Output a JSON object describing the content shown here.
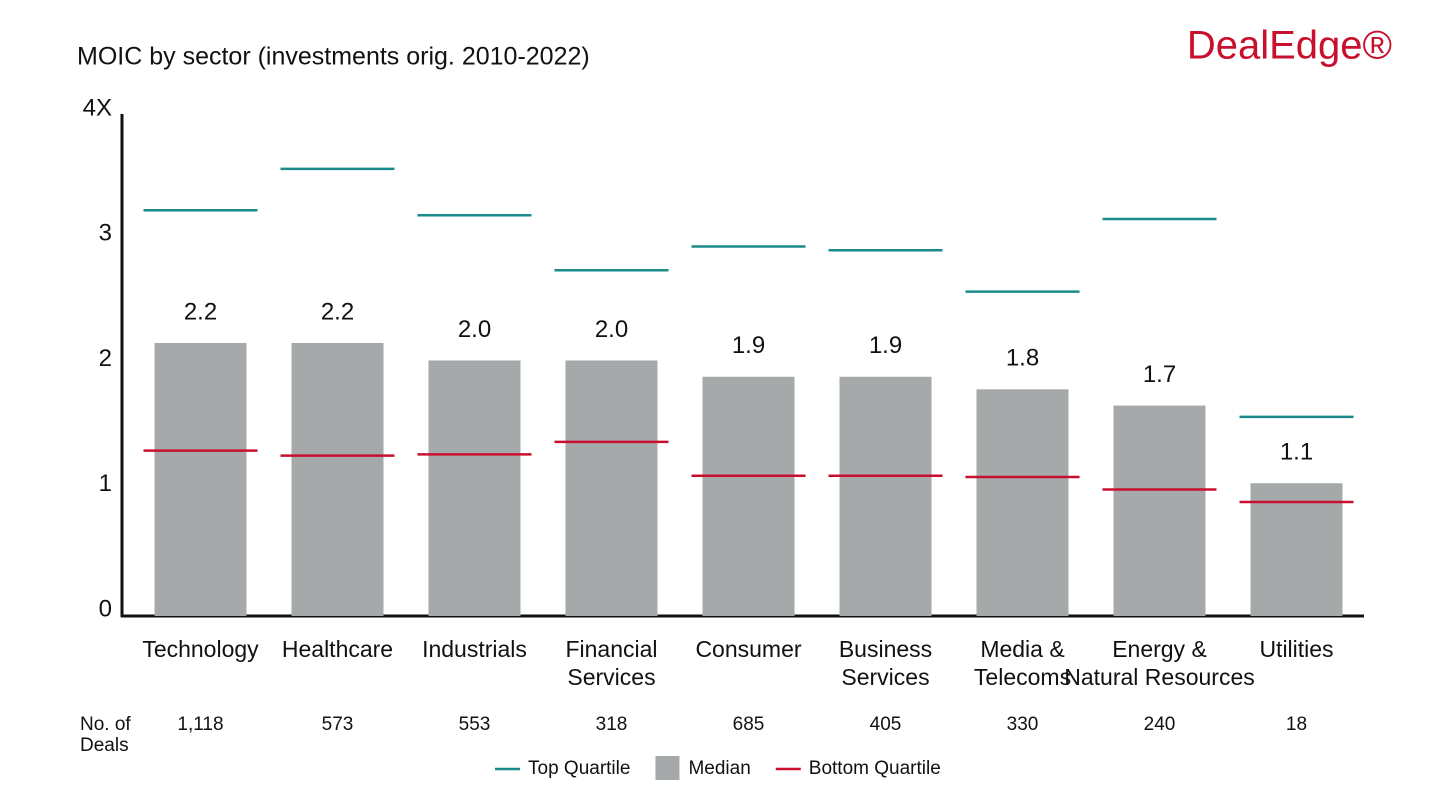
{
  "chart_data": {
    "type": "bar",
    "title": "MOIC by sector (investments orig. 2010-2022)",
    "brand": "DealEdge®",
    "categories": [
      "Technology",
      "Healthcare",
      "Industrials",
      "Financial\nServices",
      "Consumer",
      "Business\nServices",
      "Media &\nTelecoms",
      "Energy &\nNatural Resources",
      "Utilities"
    ],
    "series": [
      {
        "name": "Top Quartile",
        "color": "#1a8a8a",
        "mark": "line",
        "values": [
          3.24,
          3.57,
          3.2,
          2.76,
          2.95,
          2.92,
          2.59,
          3.17,
          1.59
        ]
      },
      {
        "name": "Median",
        "color": "#a5a9aa",
        "mark": "bar",
        "values": [
          2.18,
          2.18,
          2.04,
          2.04,
          1.91,
          1.91,
          1.81,
          1.68,
          1.06
        ],
        "value_labels": [
          "2.2",
          "2.2",
          "2.0",
          "2.0",
          "1.9",
          "1.9",
          "1.8",
          "1.7",
          "1.1"
        ]
      },
      {
        "name": "Bottom Quartile",
        "color": "#c8102e",
        "mark": "line",
        "values": [
          1.32,
          1.28,
          1.29,
          1.39,
          1.12,
          1.12,
          1.11,
          1.01,
          0.91
        ]
      }
    ],
    "ylim": [
      0,
      4
    ],
    "yticks": [
      0,
      1,
      2,
      3,
      {
        "value": 4,
        "label": "4X"
      }
    ],
    "deals_label": "No. of Deals",
    "deals": [
      "1,118",
      "573",
      "553",
      "318",
      "685",
      "405",
      "330",
      "240",
      "18"
    ]
  }
}
